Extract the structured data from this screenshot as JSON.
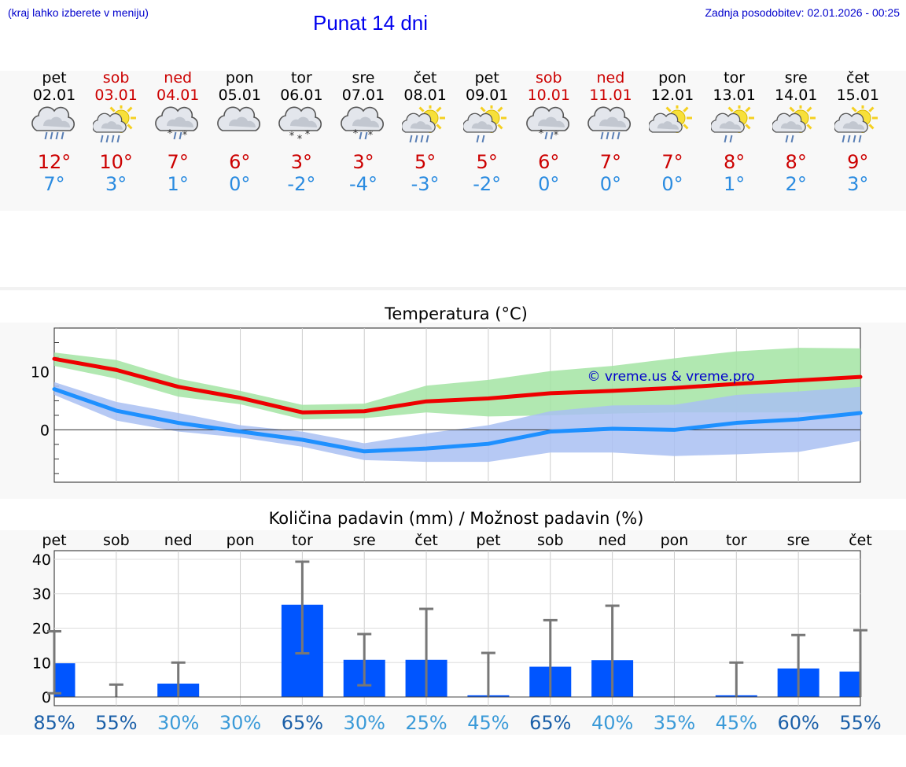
{
  "header": {
    "menu_hint": "(kraj lahko izberete v meniju)",
    "title": "Punat 14 dni",
    "updated": "Zadnja posodobitev: 02.01.2026 - 00:25"
  },
  "days": [
    {
      "name": "pet",
      "date": "02.01",
      "max": "12°",
      "min": "7°",
      "weekend": false,
      "icon": "cloud-rain-icon"
    },
    {
      "name": "sob",
      "date": "03.01",
      "max": "10°",
      "min": "3°",
      "weekend": true,
      "icon": "sun-cloud-rain-icon"
    },
    {
      "name": "ned",
      "date": "04.01",
      "max": "7°",
      "min": "1°",
      "weekend": true,
      "icon": "cloud-sleet-icon"
    },
    {
      "name": "pon",
      "date": "05.01",
      "max": "6°",
      "min": "0°",
      "weekend": false,
      "icon": "cloud-icon"
    },
    {
      "name": "tor",
      "date": "06.01",
      "max": "3°",
      "min": "-2°",
      "weekend": false,
      "icon": "cloud-snow-icon"
    },
    {
      "name": "sre",
      "date": "07.01",
      "max": "3°",
      "min": "-4°",
      "weekend": false,
      "icon": "cloud-sleet-icon"
    },
    {
      "name": "čet",
      "date": "08.01",
      "max": "5°",
      "min": "-3°",
      "weekend": false,
      "icon": "sun-cloud-rain-icon"
    },
    {
      "name": "pet",
      "date": "09.01",
      "max": "5°",
      "min": "-2°",
      "weekend": false,
      "icon": "sun-cloud-light-rain-icon"
    },
    {
      "name": "sob",
      "date": "10.01",
      "max": "6°",
      "min": "0°",
      "weekend": true,
      "icon": "cloud-sleet-icon"
    },
    {
      "name": "ned",
      "date": "11.01",
      "max": "7°",
      "min": "0°",
      "weekend": true,
      "icon": "cloud-rain-icon"
    },
    {
      "name": "pon",
      "date": "12.01",
      "max": "7°",
      "min": "0°",
      "weekend": false,
      "icon": "sun-cloud-icon"
    },
    {
      "name": "tor",
      "date": "13.01",
      "max": "8°",
      "min": "1°",
      "weekend": false,
      "icon": "sun-cloud-light-rain-icon"
    },
    {
      "name": "sre",
      "date": "14.01",
      "max": "8°",
      "min": "2°",
      "weekend": false,
      "icon": "sun-cloud-light-rain-icon"
    },
    {
      "name": "čet",
      "date": "15.01",
      "max": "9°",
      "min": "3°",
      "weekend": false,
      "icon": "sun-cloud-rain-icon"
    }
  ],
  "chart_data": [
    {
      "type": "line",
      "title": "Temperatura (°C)",
      "watermark": "© vreme.us & vreme.pro",
      "ylim": [
        -9,
        17.5
      ],
      "yticks": [
        0,
        10
      ],
      "x": [
        0,
        1,
        2,
        3,
        4,
        5,
        6,
        7,
        8,
        9,
        10,
        11,
        12,
        13
      ],
      "series": [
        {
          "name": "max",
          "color": "#ee0000",
          "values": [
            12.2,
            10.3,
            7.4,
            5.5,
            3.0,
            3.2,
            4.9,
            5.4,
            6.3,
            6.7,
            7.2,
            7.9,
            8.5,
            9.1
          ],
          "band_low": [
            11.0,
            8.8,
            5.7,
            4.4,
            1.8,
            2.0,
            3.0,
            2.3,
            2.5,
            2.8,
            3.0,
            3.0,
            3.0,
            2.8
          ],
          "band_high": [
            13.3,
            12.0,
            8.8,
            6.7,
            4.3,
            4.5,
            7.6,
            8.6,
            10.1,
            11.0,
            12.3,
            13.5,
            14.1,
            14.0
          ]
        },
        {
          "name": "min",
          "color": "#1e90ff",
          "values": [
            7.0,
            3.3,
            1.2,
            -0.3,
            -1.7,
            -3.7,
            -3.2,
            -2.4,
            -0.3,
            0.2,
            0.0,
            1.2,
            1.8,
            2.9
          ],
          "band_low": [
            6.0,
            1.6,
            -0.3,
            -1.3,
            -2.9,
            -5.2,
            -5.5,
            -5.5,
            -3.9,
            -3.9,
            -4.5,
            -4.2,
            -3.8,
            -1.9
          ],
          "band_high": [
            8.2,
            4.8,
            2.9,
            0.8,
            -0.3,
            -2.3,
            -0.6,
            0.8,
            3.2,
            4.2,
            4.3,
            6.0,
            6.6,
            7.4
          ]
        }
      ]
    },
    {
      "type": "bar",
      "title": "Količina padavin (mm) / Možnost padavin (%)",
      "categories": [
        "pet",
        "sob",
        "ned",
        "pon",
        "tor",
        "sre",
        "čet",
        "pet",
        "sob",
        "ned",
        "pon",
        "tor",
        "sre",
        "čet"
      ],
      "ylim": [
        -2.5,
        42.5
      ],
      "yticks": [
        0,
        10,
        20,
        30,
        40
      ],
      "values": [
        9.8,
        0,
        3.9,
        0,
        26.8,
        10.8,
        10.8,
        0.5,
        8.8,
        10.7,
        0,
        0.5,
        8.3,
        7.4
      ],
      "error_low": [
        1.1,
        0,
        0,
        0,
        12.7,
        3.4,
        0,
        0,
        0,
        0,
        0,
        0,
        0,
        0
      ],
      "error_high": [
        19.1,
        3.6,
        10.0,
        0,
        39.3,
        18.3,
        25.6,
        12.8,
        22.3,
        26.5,
        0,
        10.0,
        18.0,
        19.4
      ],
      "bar_color": "#0055ff",
      "probability": [
        "85%",
        "55%",
        "30%",
        "30%",
        "65%",
        "30%",
        "25%",
        "45%",
        "65%",
        "40%",
        "35%",
        "45%",
        "60%",
        "55%"
      ],
      "probability_colors": [
        "#1a5fa8",
        "#1a5fa8",
        "#3a9ad8",
        "#3a9ad8",
        "#1a5fa8",
        "#3a9ad8",
        "#3a9ad8",
        "#3a9ad8",
        "#1a5fa8",
        "#3a9ad8",
        "#3a9ad8",
        "#3a9ad8",
        "#1a5fa8",
        "#1a5fa8"
      ]
    }
  ],
  "colors": {
    "max_temp": "#cc0000",
    "min_temp": "#2a8be0",
    "band_max": "#a3e4a3",
    "band_min": "#a9c0f2",
    "bar": "#0055ff",
    "error": "#777777",
    "weekend": "#cc0000"
  }
}
